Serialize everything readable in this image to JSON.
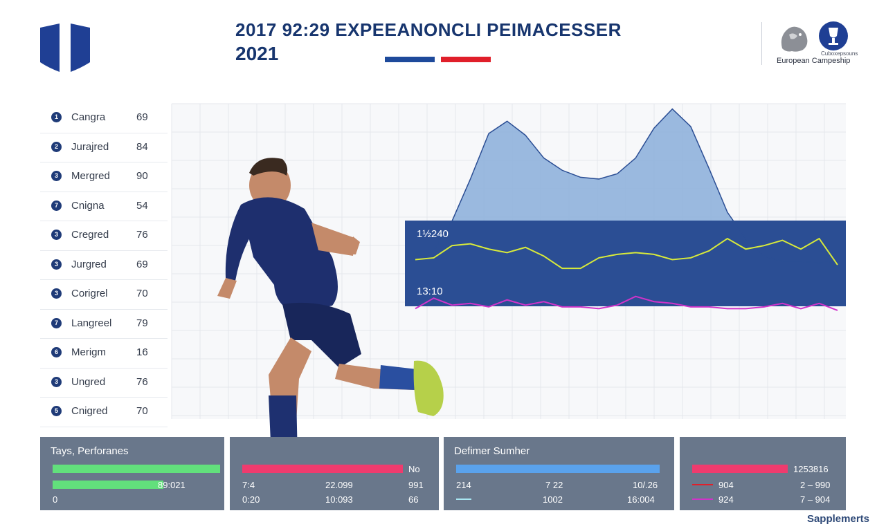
{
  "header": {
    "title_line1": "2017 92:29 EXPEEANONCLI PEIMACESSER",
    "title_line2": "2021",
    "brand_small": "Cuboxepsouns",
    "brand_name": "European Campeship",
    "colors": {
      "title": "#17356e",
      "stripe_blue": "#1e4a9b",
      "stripe_red": "#e01f2a"
    }
  },
  "icons": [
    "shield-logo-icon",
    "lion-logo-icon",
    "trophy-logo-icon"
  ],
  "ranking": [
    {
      "badge": "1",
      "name": "Cangra",
      "value": "69"
    },
    {
      "badge": "2",
      "name": "Jurajred",
      "value": "84"
    },
    {
      "badge": "3",
      "name": "Mergred",
      "value": "90"
    },
    {
      "badge": "7",
      "name": "Cnigna",
      "value": "54"
    },
    {
      "badge": "3",
      "name": "Cregred",
      "value": "76"
    },
    {
      "badge": "3",
      "name": "Jurgred",
      "value": "69"
    },
    {
      "badge": "3",
      "name": "Corigrel",
      "value": "70"
    },
    {
      "badge": "7",
      "name": "Langreel",
      "value": "79"
    },
    {
      "badge": "6",
      "name": "Merigm",
      "value": "16"
    },
    {
      "badge": "3",
      "name": "Ungred",
      "value": "76"
    },
    {
      "badge": "5",
      "name": "Cnigred",
      "value": "70"
    }
  ],
  "chart_data": {
    "type": "line",
    "title": "",
    "xlabel": "",
    "ylabel": "",
    "grid": true,
    "legend": "none",
    "x": [
      1,
      2,
      3,
      4,
      5,
      6,
      7,
      8,
      9,
      10,
      11,
      12,
      13,
      14,
      15,
      16,
      17,
      18,
      19,
      20,
      21,
      22,
      23,
      24
    ],
    "ylim": [
      0,
      100
    ],
    "labels": {
      "upper": "1½240",
      "lower": "13:10"
    },
    "series": [
      {
        "kind": "area",
        "color": "#8fb1dc",
        "values": [
          9,
          16,
          33,
          57,
          83,
          90,
          82,
          69,
          62,
          58,
          57,
          60,
          69,
          86,
          97,
          87,
          63,
          38,
          23,
          13,
          10,
          10,
          9,
          10
        ]
      },
      {
        "kind": "line",
        "color": "#d8ea3a",
        "values": [
          11,
          12,
          19,
          20,
          17,
          15,
          18,
          13,
          6,
          6,
          12,
          14,
          15,
          14,
          11,
          12,
          16,
          23,
          17,
          19,
          22,
          17,
          23,
          8
        ]
      },
      {
        "kind": "line",
        "color": "#d033c9",
        "values": [
          -17,
          -11,
          -15,
          -14,
          -16,
          -12,
          -15,
          -13,
          -16,
          -16,
          -17,
          -15,
          -10,
          -13,
          -14,
          -16,
          -16,
          -17,
          -17,
          -16,
          -14,
          -17,
          -14,
          -18
        ]
      }
    ]
  },
  "panels": [
    {
      "title": "Tays, Perforanes",
      "bars": [
        {
          "color": "#62e07c",
          "value": 1.0
        },
        {
          "color": "#62e07c",
          "value": 0.66
        }
      ],
      "texts": [
        "89:021",
        "0"
      ]
    },
    {
      "title": "",
      "bars": [
        {
          "color": "#ef3b6e",
          "value": 1.0
        }
      ],
      "texts": [
        "No",
        "7:4",
        "22.099",
        "991",
        "0:20",
        "10:093",
        "66"
      ]
    },
    {
      "title": "Defimer Sumher",
      "bars": [
        {
          "color": "#5aa2ec",
          "value": 1.0
        }
      ],
      "texts": [
        "214",
        "7 22",
        "10/.26",
        "1002",
        "16:004"
      ]
    },
    {
      "title": "",
      "bars": [
        {
          "color": "#ef3b6e",
          "value": 1.0
        }
      ],
      "texts": [
        "1253816",
        "904",
        "2 – 990",
        "924",
        "7 – 904"
      ]
    }
  ],
  "footer": {
    "supplements": "Sapplemerts"
  }
}
